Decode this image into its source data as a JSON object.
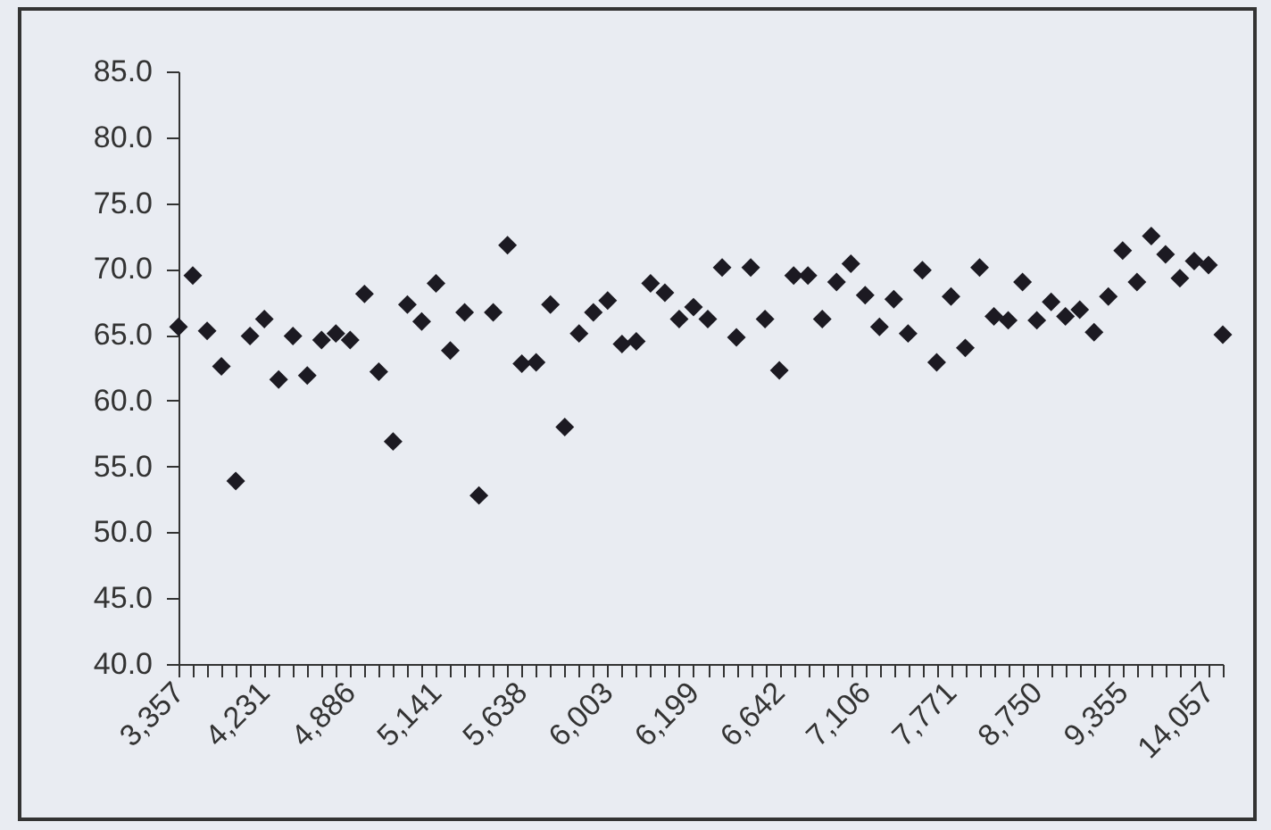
{
  "chart_data": {
    "type": "scatter",
    "marker": "diamond",
    "grid": false,
    "categories": [
      "3,357",
      null,
      null,
      null,
      null,
      null,
      "4,231",
      null,
      null,
      null,
      null,
      null,
      "4,886",
      null,
      null,
      null,
      null,
      null,
      "5,141",
      null,
      null,
      null,
      null,
      null,
      "5,638",
      null,
      null,
      null,
      null,
      null,
      "6,003",
      null,
      null,
      null,
      null,
      null,
      "6,199",
      null,
      null,
      null,
      null,
      null,
      "6,642",
      null,
      null,
      null,
      null,
      null,
      "7,106",
      null,
      null,
      null,
      null,
      null,
      "7,771",
      null,
      null,
      null,
      null,
      null,
      "8,750",
      null,
      null,
      null,
      null,
      null,
      "9,355",
      null,
      null,
      null,
      null,
      null,
      "14,057",
      null
    ],
    "series": [
      {
        "color": "#1c1a22",
        "values": [
          65.6,
          69.5,
          65.3,
          62.6,
          53.9,
          64.9,
          66.2,
          61.6,
          64.9,
          61.9,
          64.6,
          65.1,
          64.6,
          68.1,
          62.2,
          56.9,
          67.3,
          66.0,
          68.9,
          63.8,
          66.7,
          52.8,
          66.7,
          71.8,
          62.8,
          62.9,
          67.3,
          58.0,
          65.1,
          66.7,
          67.6,
          64.3,
          64.5,
          68.9,
          68.2,
          66.2,
          67.1,
          66.2,
          70.1,
          64.8,
          70.1,
          66.2,
          62.3,
          69.5,
          69.5,
          66.2,
          69.0,
          70.4,
          68.0,
          65.6,
          67.7,
          65.1,
          69.9,
          62.9,
          67.9,
          64.0,
          70.1,
          66.4,
          66.1,
          69.0,
          66.1,
          67.5,
          66.4,
          66.9,
          65.2,
          67.9,
          71.4,
          69.0,
          72.5,
          71.1,
          69.3,
          70.6,
          70.3,
          65.0
        ]
      }
    ],
    "ylim": [
      40,
      85
    ],
    "yticks": [
      {
        "value": 40,
        "label": "40.0"
      },
      {
        "value": 45,
        "label": "45.0"
      },
      {
        "value": 50,
        "label": "50.0"
      },
      {
        "value": 55,
        "label": "55.0"
      },
      {
        "value": 60,
        "label": "60.0"
      },
      {
        "value": 65,
        "label": "65.0"
      },
      {
        "value": 70,
        "label": "70.0"
      },
      {
        "value": 75,
        "label": "75.0"
      },
      {
        "value": 80,
        "label": "80.0"
      },
      {
        "value": 85,
        "label": "85.0"
      }
    ]
  }
}
